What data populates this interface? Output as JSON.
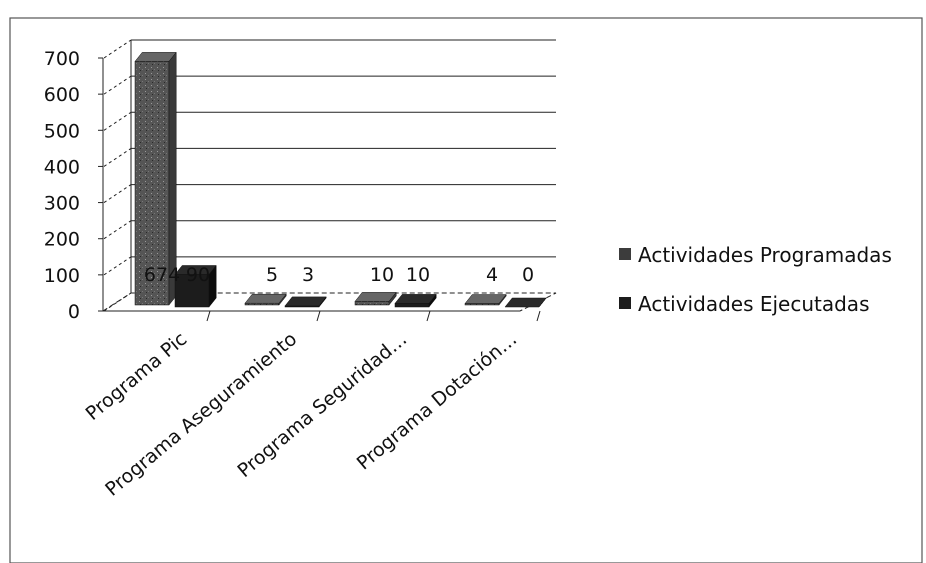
{
  "chart_data": {
    "type": "bar",
    "title": "",
    "xlabel": "",
    "ylabel": "",
    "ylim": [
      0,
      700
    ],
    "yticks": [
      "0",
      "100",
      "200",
      "300",
      "400",
      "500",
      "600",
      "700"
    ],
    "categories": [
      "Programa Pic",
      "Programa Aseguramiento",
      "Programa Seguridad…",
      "Programa Dotación…"
    ],
    "series": [
      {
        "name": "Actividades Programadas",
        "values": [
          674,
          5,
          10,
          4
        ],
        "color": "#4d4d4d"
      },
      {
        "name": "Actividades Ejecutadas",
        "values": [
          90,
          3,
          10,
          0
        ],
        "color": "#1c1c1c"
      }
    ],
    "grid": true,
    "legend_position": "right",
    "three_d": true
  }
}
